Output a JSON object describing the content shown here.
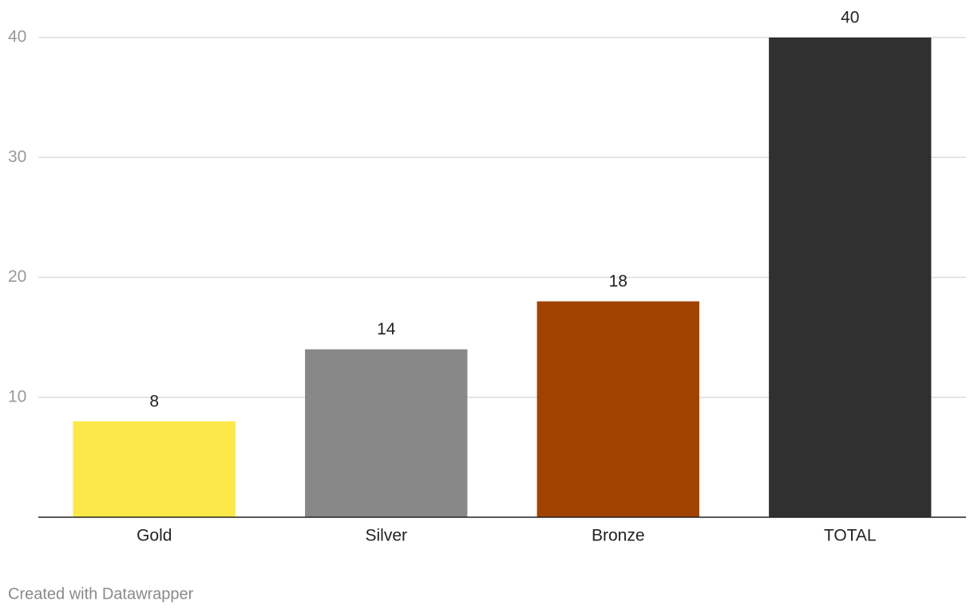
{
  "chart_data": {
    "type": "bar",
    "categories": [
      "Gold",
      "Silver",
      "Bronze",
      "TOTAL"
    ],
    "values": [
      8,
      14,
      18,
      40
    ],
    "colors": [
      "#fde84a",
      "#888888",
      "#a04300",
      "#303030"
    ],
    "ylim": [
      0,
      40
    ],
    "yticks": [
      10,
      20,
      30,
      40
    ],
    "grid": true,
    "footer": "Created with Datawrapper"
  }
}
